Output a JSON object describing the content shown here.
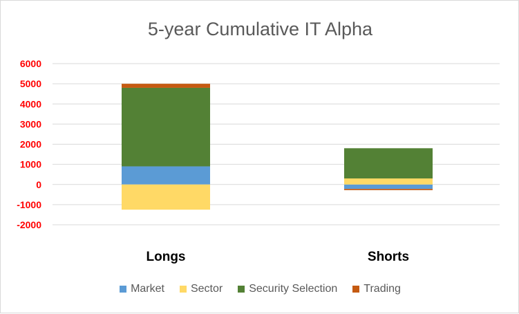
{
  "chart_data": {
    "type": "bar",
    "stacked": true,
    "title": "5-year Cumulative IT Alpha",
    "categories": [
      "Longs",
      "Shorts"
    ],
    "series": [
      {
        "name": "Market",
        "values": [
          900,
          -220
        ],
        "color": "#5b9bd5"
      },
      {
        "name": "Sector",
        "values": [
          -1250,
          300
        ],
        "color": "#ffd966"
      },
      {
        "name": "Security Selection",
        "values": [
          3900,
          1500
        ],
        "color": "#538135"
      },
      {
        "name": "Trading",
        "values": [
          200,
          -60
        ],
        "color": "#c55a11"
      }
    ],
    "ylim": [
      -2000,
      6000
    ],
    "yticks": [
      6000,
      5000,
      4000,
      3000,
      2000,
      1000,
      0,
      -1000,
      -2000
    ],
    "ytick_color": "#ff0000",
    "grid": true,
    "legend": "bottom"
  }
}
